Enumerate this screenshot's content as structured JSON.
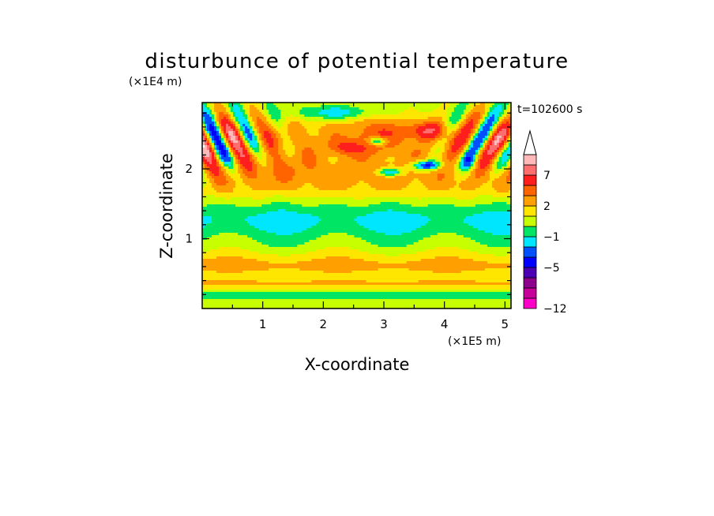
{
  "chart_data": {
    "type": "heatmap",
    "title": "disturbunce of potential temperature",
    "xlabel": "X-coordinate",
    "ylabel": "Z-coordinate",
    "x_scale_label": "(×1E5 m)",
    "y_scale_label": "(×1E4 m)",
    "time_label": "t=102600 s",
    "xlim": [
      0,
      5.1
    ],
    "ylim": [
      0,
      2.95
    ],
    "x_ticks": [
      1,
      2,
      3,
      4,
      5
    ],
    "x_ticklabels": [
      "1",
      "2",
      "3",
      "4",
      "5"
    ],
    "y_ticks": [
      1,
      2
    ],
    "y_ticklabels": [
      "1",
      "2"
    ],
    "colorbar": {
      "levels": [
        -12,
        -10,
        -8,
        -6.5,
        -5,
        -3.5,
        -2,
        -1,
        0,
        1,
        2,
        3.5,
        5,
        7,
        8.5,
        10
      ],
      "colors": [
        "#ff00c8",
        "#c8009a",
        "#8c008c",
        "#4b00b4",
        "#0000ff",
        "#0050ff",
        "#00e6ff",
        "#00e664",
        "#c8ff00",
        "#ffe600",
        "#ffa000",
        "#ff6400",
        "#ff1e1e",
        "#ff6e6e",
        "#ffb9b9"
      ],
      "overflow_color": "#ffffff",
      "tick_values": [
        -12,
        -5,
        -1,
        2,
        7
      ],
      "tick_labels": [
        "−12",
        "−5",
        "−1",
        "2",
        "7"
      ]
    }
  }
}
